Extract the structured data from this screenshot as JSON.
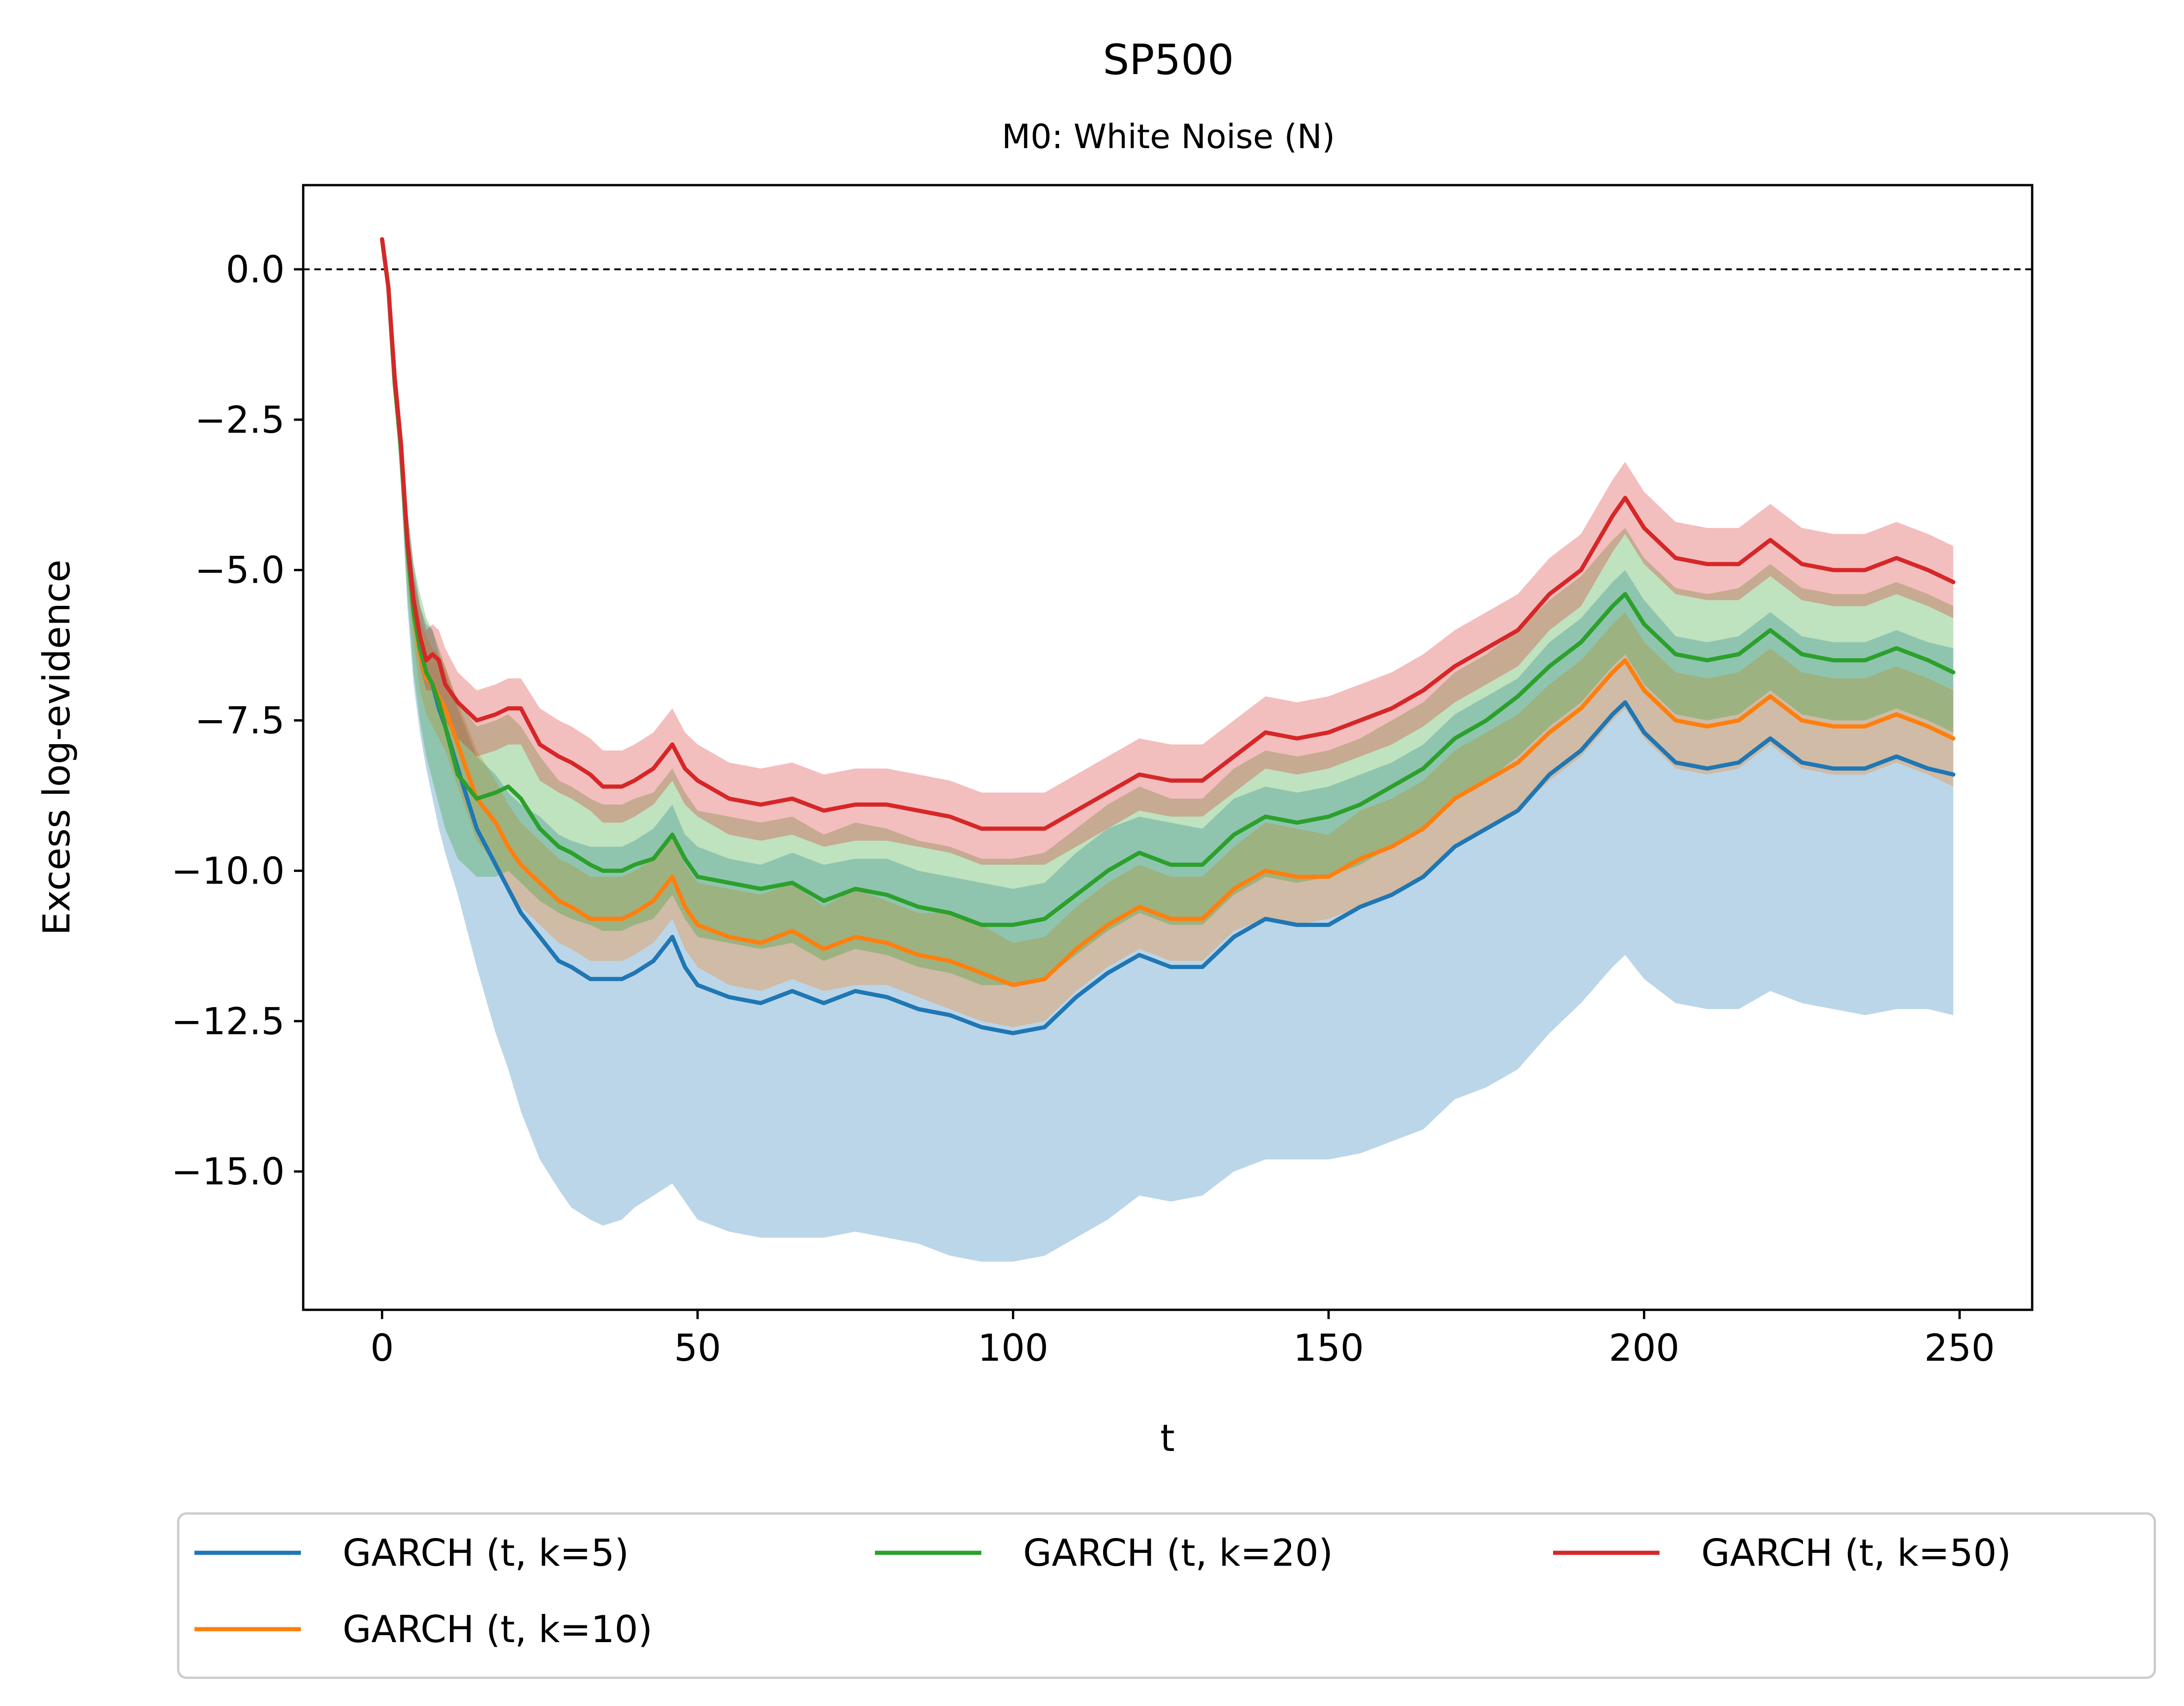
{
  "title": "SP500",
  "subtitle": "M0: White Noise (N)",
  "chart_data": {
    "type": "line",
    "title": "SP500",
    "subtitle": "M0: White Noise (N)",
    "xlabel": "t",
    "ylabel": "Excess log-evidence",
    "xlim": [
      -12.5,
      261.5
    ],
    "ylim": [
      -17.3,
      1.4
    ],
    "xticks": [
      0,
      50,
      100,
      150,
      200,
      250
    ],
    "xtick_labels": [
      "0",
      "50",
      "100",
      "150",
      "200",
      "250"
    ],
    "yticks": [
      0.0,
      -2.5,
      -5.0,
      -7.5,
      -10.0,
      -12.5,
      -15.0
    ],
    "ytick_labels": [
      "0.0",
      "−2.5",
      "−5.0",
      "−7.5",
      "−10.0",
      "−12.5",
      "−15.0"
    ],
    "reference_line": {
      "y": 0.0,
      "style": "dashed",
      "color": "#000000"
    },
    "grid": false,
    "legend_placement": "below plot, 3 columns",
    "band_alpha": 0.3,
    "series": [
      {
        "name": "GARCH (t, k=5)",
        "color": "#1f77b4",
        "x": [
          0,
          1,
          2,
          3,
          4,
          5,
          6,
          7,
          8,
          9,
          10,
          12,
          15,
          18,
          20,
          22,
          25,
          28,
          30,
          33,
          35,
          38,
          40,
          43,
          46,
          48,
          50,
          55,
          60,
          65,
          70,
          75,
          80,
          85,
          90,
          95,
          100,
          105,
          110,
          115,
          120,
          125,
          130,
          135,
          140,
          145,
          150,
          155,
          160,
          165,
          170,
          175,
          180,
          185,
          190,
          195,
          197,
          200,
          205,
          210,
          215,
          220,
          225,
          230,
          235,
          240,
          245,
          249
        ],
        "y": [
          0.5,
          -0.3,
          -1.9,
          -3.0,
          -4.6,
          -5.7,
          -6.4,
          -6.8,
          -6.9,
          -7.3,
          -7.6,
          -8.3,
          -9.3,
          -9.9,
          -10.3,
          -10.7,
          -11.1,
          -11.5,
          -11.6,
          -11.8,
          -11.8,
          -11.8,
          -11.7,
          -11.5,
          -11.1,
          -11.6,
          -11.9,
          -12.1,
          -12.2,
          -12.0,
          -12.2,
          -12.0,
          -12.1,
          -12.3,
          -12.4,
          -12.6,
          -12.7,
          -12.6,
          -12.1,
          -11.7,
          -11.4,
          -11.6,
          -11.6,
          -11.1,
          -10.8,
          -10.9,
          -10.9,
          -10.6,
          -10.4,
          -10.1,
          -9.6,
          -9.3,
          -9.0,
          -8.4,
          -8.0,
          -7.4,
          -7.2,
          -7.7,
          -8.2,
          -8.3,
          -8.2,
          -7.8,
          -8.2,
          -8.3,
          -8.3,
          -8.1,
          -8.3,
          -8.4
        ],
        "lower": [
          0.5,
          -0.3,
          -2.0,
          -3.6,
          -5.6,
          -6.9,
          -7.7,
          -8.3,
          -8.8,
          -9.3,
          -9.7,
          -10.4,
          -11.6,
          -12.7,
          -13.3,
          -14.0,
          -14.8,
          -15.3,
          -15.6,
          -15.8,
          -15.9,
          -15.8,
          -15.6,
          -15.4,
          -15.2,
          -15.5,
          -15.8,
          -16.0,
          -16.1,
          -16.1,
          -16.1,
          -16.0,
          -16.1,
          -16.2,
          -16.4,
          -16.5,
          -16.5,
          -16.4,
          -16.1,
          -15.8,
          -15.4,
          -15.5,
          -15.4,
          -15.0,
          -14.8,
          -14.8,
          -14.8,
          -14.7,
          -14.5,
          -14.3,
          -13.8,
          -13.6,
          -13.3,
          -12.7,
          -12.2,
          -11.6,
          -11.4,
          -11.8,
          -12.2,
          -12.3,
          -12.3,
          -12.0,
          -12.2,
          -12.3,
          -12.4,
          -12.3,
          -12.3,
          -12.4
        ],
        "upper": [
          0.5,
          -0.2,
          -1.8,
          -2.6,
          -4.0,
          -4.9,
          -5.6,
          -5.9,
          -6.0,
          -6.4,
          -6.7,
          -7.3,
          -8.1,
          -8.4,
          -8.7,
          -8.9,
          -9.1,
          -9.4,
          -9.5,
          -9.6,
          -9.6,
          -9.6,
          -9.5,
          -9.3,
          -8.9,
          -9.4,
          -9.6,
          -9.8,
          -9.9,
          -9.7,
          -9.9,
          -9.8,
          -9.8,
          -10.0,
          -10.1,
          -10.2,
          -10.3,
          -10.2,
          -9.7,
          -9.3,
          -9.1,
          -9.2,
          -9.3,
          -8.8,
          -8.6,
          -8.7,
          -8.6,
          -8.4,
          -8.2,
          -7.9,
          -7.4,
          -7.1,
          -6.8,
          -6.2,
          -5.8,
          -5.2,
          -5.0,
          -5.5,
          -6.1,
          -6.2,
          -6.1,
          -5.7,
          -6.1,
          -6.2,
          -6.2,
          -6.0,
          -6.2,
          -6.3
        ]
      },
      {
        "name": "GARCH (t, k=10)",
        "color": "#ff7f0e",
        "x": [
          0,
          1,
          2,
          3,
          4,
          5,
          6,
          7,
          8,
          9,
          10,
          12,
          15,
          18,
          20,
          22,
          25,
          28,
          30,
          33,
          35,
          38,
          40,
          43,
          46,
          48,
          50,
          55,
          60,
          65,
          70,
          75,
          80,
          85,
          90,
          95,
          100,
          105,
          110,
          115,
          120,
          125,
          130,
          135,
          140,
          145,
          150,
          155,
          160,
          165,
          170,
          175,
          180,
          185,
          190,
          195,
          197,
          200,
          205,
          210,
          215,
          220,
          225,
          230,
          235,
          240,
          245,
          249
        ],
        "y": [
          0.5,
          -0.3,
          -1.9,
          -3.0,
          -4.6,
          -5.7,
          -6.4,
          -6.8,
          -6.9,
          -7.1,
          -7.3,
          -7.9,
          -8.8,
          -9.2,
          -9.6,
          -9.9,
          -10.2,
          -10.5,
          -10.6,
          -10.8,
          -10.8,
          -10.8,
          -10.7,
          -10.5,
          -10.1,
          -10.6,
          -10.9,
          -11.1,
          -11.2,
          -11.0,
          -11.3,
          -11.1,
          -11.2,
          -11.4,
          -11.5,
          -11.7,
          -11.9,
          -11.8,
          -11.3,
          -10.9,
          -10.6,
          -10.8,
          -10.8,
          -10.3,
          -10.0,
          -10.1,
          -10.1,
          -9.8,
          -9.6,
          -9.3,
          -8.8,
          -8.5,
          -8.2,
          -7.7,
          -7.3,
          -6.7,
          -6.5,
          -7.0,
          -7.5,
          -7.6,
          -7.5,
          -7.1,
          -7.5,
          -7.6,
          -7.6,
          -7.4,
          -7.6,
          -7.8
        ],
        "lower": [
          0.5,
          -0.3,
          -2.0,
          -3.4,
          -5.2,
          -6.2,
          -7.0,
          -7.4,
          -7.6,
          -7.8,
          -8.0,
          -8.6,
          -9.5,
          -9.9,
          -10.3,
          -10.6,
          -10.9,
          -11.2,
          -11.3,
          -11.5,
          -11.5,
          -11.5,
          -11.4,
          -11.2,
          -10.8,
          -11.3,
          -11.6,
          -11.9,
          -12.0,
          -11.8,
          -12.0,
          -11.9,
          -11.9,
          -12.1,
          -12.3,
          -12.5,
          -12.6,
          -12.5,
          -12.0,
          -11.6,
          -11.3,
          -11.5,
          -11.5,
          -11.0,
          -10.8,
          -10.9,
          -10.8,
          -10.6,
          -10.4,
          -10.1,
          -9.6,
          -9.3,
          -9.0,
          -8.5,
          -8.1,
          -7.5,
          -7.3,
          -7.8,
          -8.3,
          -8.4,
          -8.3,
          -7.9,
          -8.3,
          -8.4,
          -8.4,
          -8.2,
          -8.4,
          -8.6
        ],
        "upper": [
          0.5,
          -0.2,
          -1.8,
          -2.7,
          -4.1,
          -5.1,
          -5.8,
          -6.1,
          -6.3,
          -6.4,
          -6.6,
          -7.2,
          -8.0,
          -8.5,
          -8.9,
          -9.2,
          -9.5,
          -9.8,
          -9.9,
          -10.1,
          -10.1,
          -10.1,
          -10.0,
          -9.8,
          -9.4,
          -9.9,
          -10.2,
          -10.3,
          -10.4,
          -10.2,
          -10.6,
          -10.3,
          -10.5,
          -10.7,
          -10.7,
          -10.9,
          -11.2,
          -11.1,
          -10.6,
          -10.2,
          -9.9,
          -10.1,
          -10.1,
          -9.6,
          -9.2,
          -9.3,
          -9.4,
          -9.0,
          -8.8,
          -8.5,
          -8.0,
          -7.7,
          -7.4,
          -6.9,
          -6.5,
          -5.9,
          -5.7,
          -6.2,
          -6.7,
          -6.8,
          -6.7,
          -6.3,
          -6.7,
          -6.8,
          -6.8,
          -6.6,
          -6.8,
          -7.0
        ]
      },
      {
        "name": "GARCH (t, k=20)",
        "color": "#2ca02c",
        "x": [
          0,
          1,
          2,
          3,
          4,
          5,
          6,
          7,
          8,
          9,
          10,
          12,
          15,
          18,
          20,
          22,
          25,
          28,
          30,
          33,
          35,
          38,
          40,
          43,
          46,
          48,
          50,
          55,
          60,
          65,
          70,
          75,
          80,
          85,
          90,
          95,
          100,
          105,
          110,
          115,
          120,
          125,
          130,
          135,
          140,
          145,
          150,
          155,
          160,
          165,
          170,
          175,
          180,
          185,
          190,
          195,
          197,
          200,
          205,
          210,
          215,
          220,
          225,
          230,
          235,
          240,
          245,
          249
        ],
        "y": [
          0.5,
          -0.3,
          -1.9,
          -3.0,
          -4.6,
          -5.7,
          -6.3,
          -6.7,
          -6.9,
          -7.2,
          -7.6,
          -8.4,
          -8.8,
          -8.7,
          -8.6,
          -8.8,
          -9.3,
          -9.6,
          -9.7,
          -9.9,
          -10.0,
          -10.0,
          -9.9,
          -9.8,
          -9.4,
          -9.8,
          -10.1,
          -10.2,
          -10.3,
          -10.2,
          -10.5,
          -10.3,
          -10.4,
          -10.6,
          -10.7,
          -10.9,
          -10.9,
          -10.8,
          -10.4,
          -10.0,
          -9.7,
          -9.9,
          -9.9,
          -9.4,
          -9.1,
          -9.2,
          -9.1,
          -8.9,
          -8.6,
          -8.3,
          -7.8,
          -7.5,
          -7.1,
          -6.6,
          -6.2,
          -5.6,
          -5.4,
          -5.9,
          -6.4,
          -6.5,
          -6.4,
          -6.0,
          -6.4,
          -6.5,
          -6.5,
          -6.3,
          -6.5,
          -6.7
        ],
        "lower": [
          0.5,
          -0.3,
          -2.2,
          -3.6,
          -5.4,
          -6.7,
          -7.5,
          -8.1,
          -8.5,
          -8.9,
          -9.3,
          -9.8,
          -10.1,
          -10.1,
          -10.0,
          -10.2,
          -10.5,
          -10.7,
          -10.8,
          -10.9,
          -11.0,
          -11.0,
          -10.9,
          -10.8,
          -10.4,
          -10.8,
          -11.1,
          -11.2,
          -11.3,
          -11.2,
          -11.5,
          -11.3,
          -11.4,
          -11.6,
          -11.7,
          -11.9,
          -11.9,
          -11.8,
          -11.4,
          -11.0,
          -10.7,
          -10.9,
          -10.9,
          -10.4,
          -10.1,
          -10.2,
          -10.1,
          -9.9,
          -9.6,
          -9.3,
          -8.8,
          -8.5,
          -8.1,
          -7.6,
          -7.2,
          -6.6,
          -6.4,
          -6.9,
          -7.4,
          -7.5,
          -7.4,
          -7.0,
          -7.4,
          -7.5,
          -7.5,
          -7.3,
          -7.5,
          -7.7
        ],
        "upper": [
          0.5,
          -0.2,
          -1.7,
          -2.6,
          -4.0,
          -4.9,
          -5.4,
          -5.8,
          -6.0,
          -6.3,
          -6.6,
          -7.2,
          -7.6,
          -7.5,
          -7.4,
          -7.6,
          -8.1,
          -8.5,
          -8.6,
          -8.8,
          -8.9,
          -8.9,
          -8.8,
          -8.7,
          -8.3,
          -8.7,
          -9.0,
          -9.1,
          -9.2,
          -9.1,
          -9.4,
          -9.2,
          -9.3,
          -9.5,
          -9.6,
          -9.8,
          -9.8,
          -9.7,
          -9.3,
          -8.9,
          -8.6,
          -8.8,
          -8.8,
          -8.3,
          -8.0,
          -8.1,
          -8.0,
          -7.8,
          -7.5,
          -7.2,
          -6.7,
          -6.4,
          -6.0,
          -5.5,
          -5.1,
          -4.5,
          -4.3,
          -4.8,
          -5.3,
          -5.4,
          -5.3,
          -4.9,
          -5.3,
          -5.4,
          -5.4,
          -5.2,
          -5.4,
          -5.6
        ]
      },
      {
        "name": "GARCH (t, k=50)",
        "color": "#d62728",
        "x": [
          0,
          1,
          2,
          3,
          4,
          5,
          6,
          7,
          8,
          9,
          10,
          12,
          15,
          18,
          20,
          22,
          25,
          28,
          30,
          33,
          35,
          38,
          40,
          43,
          46,
          48,
          50,
          55,
          60,
          65,
          70,
          75,
          80,
          85,
          90,
          95,
          100,
          105,
          110,
          115,
          120,
          125,
          130,
          135,
          140,
          145,
          150,
          155,
          160,
          165,
          170,
          175,
          180,
          185,
          190,
          195,
          197,
          200,
          205,
          210,
          215,
          220,
          225,
          230,
          235,
          240,
          245,
          249
        ],
        "y": [
          0.5,
          -0.3,
          -1.8,
          -2.9,
          -4.5,
          -5.5,
          -6.1,
          -6.5,
          -6.4,
          -6.5,
          -6.9,
          -7.2,
          -7.5,
          -7.4,
          -7.3,
          -7.3,
          -7.9,
          -8.1,
          -8.2,
          -8.4,
          -8.6,
          -8.6,
          -8.5,
          -8.3,
          -7.9,
          -8.3,
          -8.5,
          -8.8,
          -8.9,
          -8.8,
          -9.0,
          -8.9,
          -8.9,
          -9.0,
          -9.1,
          -9.3,
          -9.3,
          -9.3,
          -9.0,
          -8.7,
          -8.4,
          -8.5,
          -8.5,
          -8.1,
          -7.7,
          -7.8,
          -7.7,
          -7.5,
          -7.3,
          -7.0,
          -6.6,
          -6.3,
          -6.0,
          -5.4,
          -5.0,
          -4.1,
          -3.8,
          -4.3,
          -4.8,
          -4.9,
          -4.9,
          -4.5,
          -4.9,
          -5.0,
          -5.0,
          -4.8,
          -5.0,
          -5.2
        ],
        "lower": [
          0.5,
          -0.3,
          -1.9,
          -3.1,
          -4.8,
          -5.9,
          -6.6,
          -7.0,
          -7.0,
          -7.1,
          -7.5,
          -7.8,
          -8.1,
          -8.0,
          -7.9,
          -7.9,
          -8.5,
          -8.7,
          -8.8,
          -9.0,
          -9.2,
          -9.2,
          -9.1,
          -8.9,
          -8.5,
          -8.9,
          -9.1,
          -9.4,
          -9.5,
          -9.4,
          -9.6,
          -9.5,
          -9.5,
          -9.6,
          -9.7,
          -9.9,
          -9.9,
          -9.9,
          -9.6,
          -9.3,
          -9.0,
          -9.1,
          -9.1,
          -8.7,
          -8.3,
          -8.4,
          -8.3,
          -8.1,
          -7.9,
          -7.6,
          -7.2,
          -6.9,
          -6.6,
          -6.0,
          -5.6,
          -4.7,
          -4.4,
          -4.9,
          -5.4,
          -5.5,
          -5.5,
          -5.1,
          -5.5,
          -5.6,
          -5.6,
          -5.4,
          -5.6,
          -5.8
        ],
        "upper": [
          0.5,
          -0.2,
          -1.7,
          -2.7,
          -4.2,
          -5.1,
          -5.6,
          -6.0,
          -5.9,
          -6.0,
          -6.3,
          -6.7,
          -7.0,
          -6.9,
          -6.8,
          -6.8,
          -7.3,
          -7.5,
          -7.6,
          -7.8,
          -8.0,
          -8.0,
          -7.9,
          -7.7,
          -7.3,
          -7.7,
          -7.9,
          -8.2,
          -8.3,
          -8.2,
          -8.4,
          -8.3,
          -8.3,
          -8.4,
          -8.5,
          -8.7,
          -8.7,
          -8.7,
          -8.4,
          -8.1,
          -7.8,
          -7.9,
          -7.9,
          -7.5,
          -7.1,
          -7.2,
          -7.1,
          -6.9,
          -6.7,
          -6.4,
          -6.0,
          -5.7,
          -5.4,
          -4.8,
          -4.4,
          -3.5,
          -3.2,
          -3.7,
          -4.2,
          -4.3,
          -4.3,
          -3.9,
          -4.3,
          -4.4,
          -4.4,
          -4.2,
          -4.4,
          -4.6
        ]
      }
    ]
  }
}
